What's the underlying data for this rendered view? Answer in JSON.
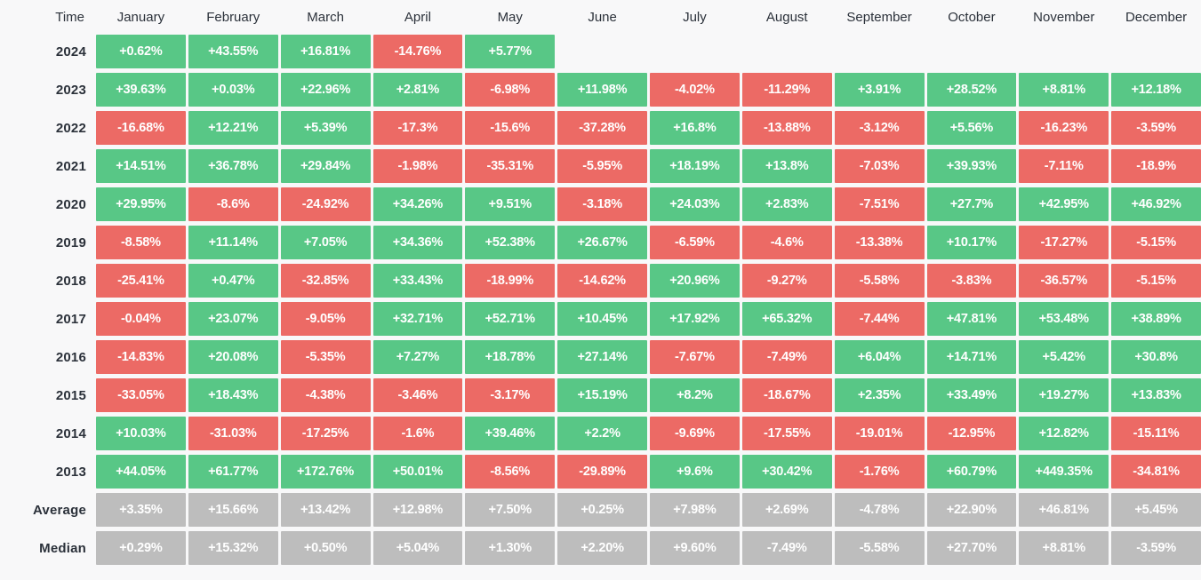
{
  "page": {
    "background": "#f8f8f9"
  },
  "colors": {
    "positive_cell": "#58c786",
    "negative_cell": "#ec6a65",
    "summary_cell": "#bdbdbd",
    "cell_text": "#ffffff",
    "header_text": "#2b313a",
    "label_text": "#2b313a"
  },
  "header": {
    "time_label": "Time",
    "months": [
      "January",
      "February",
      "March",
      "April",
      "May",
      "June",
      "July",
      "August",
      "September",
      "October",
      "November",
      "December"
    ]
  },
  "chart_data": {
    "type": "heatmap",
    "description": "Monthly percentage returns by year, with Average and Median summary rows; green = positive, red = negative, gray = summary",
    "columns": [
      "January",
      "February",
      "March",
      "April",
      "May",
      "June",
      "July",
      "August",
      "September",
      "October",
      "November",
      "December"
    ],
    "rows": [
      {
        "label": "2024",
        "kind": "year",
        "values": [
          "+0.62%",
          "+43.55%",
          "+16.81%",
          "-14.76%",
          "+5.77%",
          null,
          null,
          null,
          null,
          null,
          null,
          null
        ]
      },
      {
        "label": "2023",
        "kind": "year",
        "values": [
          "+39.63%",
          "+0.03%",
          "+22.96%",
          "+2.81%",
          "-6.98%",
          "+11.98%",
          "-4.02%",
          "-11.29%",
          "+3.91%",
          "+28.52%",
          "+8.81%",
          "+12.18%"
        ]
      },
      {
        "label": "2022",
        "kind": "year",
        "values": [
          "-16.68%",
          "+12.21%",
          "+5.39%",
          "-17.3%",
          "-15.6%",
          "-37.28%",
          "+16.8%",
          "-13.88%",
          "-3.12%",
          "+5.56%",
          "-16.23%",
          "-3.59%"
        ]
      },
      {
        "label": "2021",
        "kind": "year",
        "values": [
          "+14.51%",
          "+36.78%",
          "+29.84%",
          "-1.98%",
          "-35.31%",
          "-5.95%",
          "+18.19%",
          "+13.8%",
          "-7.03%",
          "+39.93%",
          "-7.11%",
          "-18.9%"
        ]
      },
      {
        "label": "2020",
        "kind": "year",
        "values": [
          "+29.95%",
          "-8.6%",
          "-24.92%",
          "+34.26%",
          "+9.51%",
          "-3.18%",
          "+24.03%",
          "+2.83%",
          "-7.51%",
          "+27.7%",
          "+42.95%",
          "+46.92%"
        ]
      },
      {
        "label": "2019",
        "kind": "year",
        "values": [
          "-8.58%",
          "+11.14%",
          "+7.05%",
          "+34.36%",
          "+52.38%",
          "+26.67%",
          "-6.59%",
          "-4.6%",
          "-13.38%",
          "+10.17%",
          "-17.27%",
          "-5.15%"
        ]
      },
      {
        "label": "2018",
        "kind": "year",
        "values": [
          "-25.41%",
          "+0.47%",
          "-32.85%",
          "+33.43%",
          "-18.99%",
          "-14.62%",
          "+20.96%",
          "-9.27%",
          "-5.58%",
          "-3.83%",
          "-36.57%",
          "-5.15%"
        ]
      },
      {
        "label": "2017",
        "kind": "year",
        "values": [
          "-0.04%",
          "+23.07%",
          "-9.05%",
          "+32.71%",
          "+52.71%",
          "+10.45%",
          "+17.92%",
          "+65.32%",
          "-7.44%",
          "+47.81%",
          "+53.48%",
          "+38.89%"
        ]
      },
      {
        "label": "2016",
        "kind": "year",
        "values": [
          "-14.83%",
          "+20.08%",
          "-5.35%",
          "+7.27%",
          "+18.78%",
          "+27.14%",
          "-7.67%",
          "-7.49%",
          "+6.04%",
          "+14.71%",
          "+5.42%",
          "+30.8%"
        ]
      },
      {
        "label": "2015",
        "kind": "year",
        "values": [
          "-33.05%",
          "+18.43%",
          "-4.38%",
          "-3.46%",
          "-3.17%",
          "+15.19%",
          "+8.2%",
          "-18.67%",
          "+2.35%",
          "+33.49%",
          "+19.27%",
          "+13.83%"
        ]
      },
      {
        "label": "2014",
        "kind": "year",
        "values": [
          "+10.03%",
          "-31.03%",
          "-17.25%",
          "-1.6%",
          "+39.46%",
          "+2.2%",
          "-9.69%",
          "-17.55%",
          "-19.01%",
          "-12.95%",
          "+12.82%",
          "-15.11%"
        ]
      },
      {
        "label": "2013",
        "kind": "year",
        "values": [
          "+44.05%",
          "+61.77%",
          "+172.76%",
          "+50.01%",
          "-8.56%",
          "-29.89%",
          "+9.6%",
          "+30.42%",
          "-1.76%",
          "+60.79%",
          "+449.35%",
          "-34.81%"
        ]
      },
      {
        "label": "Average",
        "kind": "summary",
        "values": [
          "+3.35%",
          "+15.66%",
          "+13.42%",
          "+12.98%",
          "+7.50%",
          "+0.25%",
          "+7.98%",
          "+2.69%",
          "-4.78%",
          "+22.90%",
          "+46.81%",
          "+5.45%"
        ]
      },
      {
        "label": "Median",
        "kind": "summary",
        "values": [
          "+0.29%",
          "+15.32%",
          "+0.50%",
          "+5.04%",
          "+1.30%",
          "+2.20%",
          "+9.60%",
          "-7.49%",
          "-5.58%",
          "+27.70%",
          "+8.81%",
          "-3.59%"
        ]
      }
    ]
  }
}
